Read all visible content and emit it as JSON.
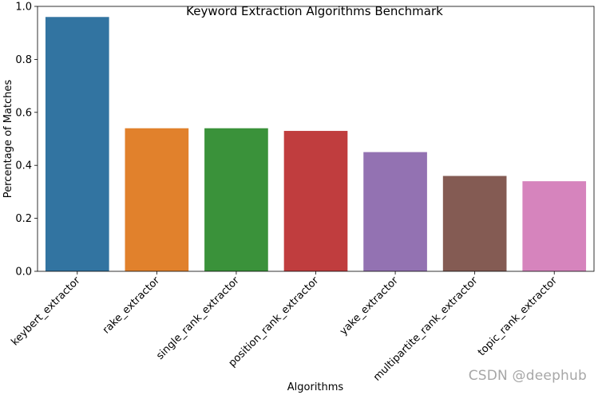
{
  "chart_data": {
    "type": "bar",
    "title": "Keyword Extraction Algorithms Benchmark",
    "xlabel": "Algorithms",
    "ylabel": "Percentage of Matches",
    "ylim": [
      0,
      1.0
    ],
    "yticks": [
      "0.0",
      "0.2",
      "0.4",
      "0.6",
      "0.8",
      "1.0"
    ],
    "grid": false,
    "categories": [
      "keybert_extractor",
      "rake_extractor",
      "single_rank_extractor",
      "position_rank_extractor",
      "yake_extractor",
      "multipartite_rank_extractor",
      "topic_rank_extractor"
    ],
    "values": [
      0.96,
      0.54,
      0.54,
      0.53,
      0.45,
      0.36,
      0.34
    ],
    "colors": [
      "#3274a1",
      "#e1812c",
      "#3a923a",
      "#c03d3e",
      "#9372b2",
      "#845b53",
      "#d684bd"
    ]
  },
  "watermark": "CSDN @deephub"
}
